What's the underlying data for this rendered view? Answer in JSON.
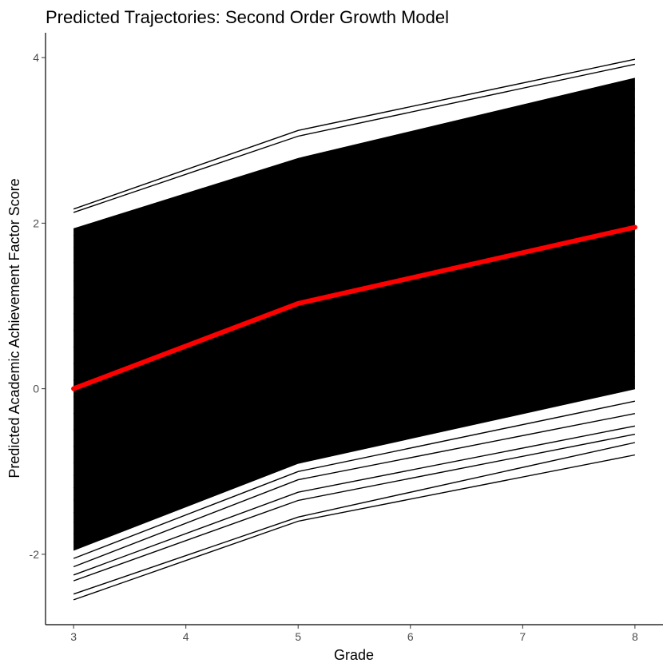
{
  "chart_data": {
    "type": "line",
    "title": "Predicted Trajectories: Second Order Growth Model",
    "xlabel": "Grade",
    "ylabel": "Predicted Academic Achievement Factor Score",
    "x": [
      3,
      5,
      8
    ],
    "xlim": [
      2.75,
      8.25
    ],
    "ylim": [
      -2.85,
      4.3
    ],
    "x_ticks": [
      "3",
      "4",
      "5",
      "6",
      "7",
      "8"
    ],
    "y_ticks": [
      "-2",
      "0",
      "2",
      "4"
    ],
    "grid": false,
    "legend": "none",
    "individual_series": {
      "color": "#000000",
      "approximate_trajectories": [
        [
          2.17,
          3.12,
          3.98
        ],
        [
          2.13,
          3.05,
          3.92
        ],
        [
          1.93,
          2.78,
          3.75
        ],
        [
          1.85,
          2.7,
          3.62
        ],
        [
          1.7,
          2.58,
          3.5
        ],
        [
          1.52,
          2.45,
          3.4
        ],
        [
          1.3,
          2.3,
          3.3
        ],
        [
          1.1,
          2.15,
          3.15
        ],
        [
          0.9,
          2.0,
          3.0
        ],
        [
          0.7,
          1.85,
          2.85
        ],
        [
          0.5,
          1.7,
          2.7
        ],
        [
          0.3,
          1.55,
          2.55
        ],
        [
          0.1,
          1.4,
          2.4
        ],
        [
          -0.1,
          1.2,
          2.2
        ],
        [
          -0.3,
          1.0,
          2.0
        ],
        [
          -0.5,
          0.8,
          1.8
        ],
        [
          -0.7,
          0.6,
          1.6
        ],
        [
          -0.9,
          0.4,
          1.38
        ],
        [
          -1.05,
          0.2,
          1.2
        ],
        [
          -1.2,
          0.0,
          1.0
        ],
        [
          -1.35,
          -0.2,
          0.85
        ],
        [
          -1.5,
          -0.4,
          0.65
        ],
        [
          -1.62,
          -0.55,
          0.45
        ],
        [
          -1.75,
          -0.7,
          0.3
        ],
        [
          -1.85,
          -0.8,
          0.15
        ],
        [
          -1.95,
          -0.9,
          0.0
        ],
        [
          -2.05,
          -1.0,
          -0.15
        ],
        [
          -2.15,
          -1.1,
          -0.3
        ],
        [
          -2.25,
          -1.25,
          -0.45
        ],
        [
          -2.32,
          -1.35,
          -0.55
        ],
        [
          -2.48,
          -1.55,
          -0.65
        ],
        [
          -2.55,
          -1.6,
          -0.8
        ]
      ]
    },
    "series": [
      {
        "name": "",
        "values": [
          0.0,
          1.03,
          1.95
        ],
        "color": "#ff0000"
      }
    ]
  }
}
